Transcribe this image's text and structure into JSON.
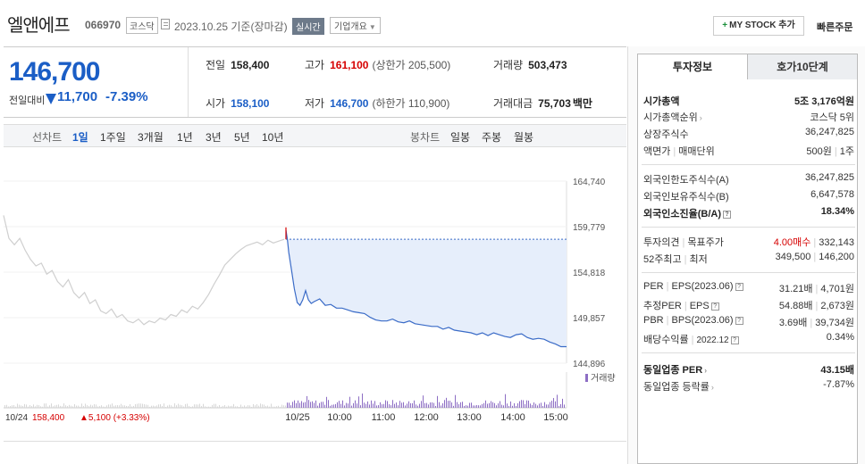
{
  "header": {
    "stock_name": "엘앤에프",
    "stock_code": "066970",
    "market": "코스닥",
    "base_date": "2023.10.25 기준(장마감)",
    "realtime": "실시간",
    "overview": "기업개요",
    "mystock_button": "MY STOCK 추가",
    "quick_order": "빠른주문"
  },
  "price": {
    "current": "146,700",
    "change_label": "전일대비",
    "change_value": "11,700",
    "change_rate": "-7.39%",
    "prev_close_label": "전일",
    "prev_close": "158,400",
    "high_label": "고가",
    "high": "161,100",
    "upper_limit": "(상한가 205,500)",
    "volume_label": "거래량",
    "volume": "503,473",
    "open_label": "시가",
    "open": "158,100",
    "low_label": "저가",
    "low": "146,700",
    "lower_limit": "(하한가 110,900)",
    "amount_label": "거래대금",
    "amount": "75,703",
    "amount_unit": "백만"
  },
  "periods": {
    "line_label": "선차트",
    "line": [
      "1일",
      "1주일",
      "3개월",
      "1년",
      "3년",
      "5년",
      "10년"
    ],
    "candle_label": "봉차트",
    "candle": [
      "일봉",
      "주봉",
      "월봉"
    ]
  },
  "colors": {
    "up": "#d60000",
    "down": "#1b5ec6",
    "area": "#e6eefb",
    "line": "#3a6bc7",
    "prev_line": "#cfcfcf"
  },
  "chart_data": {
    "type": "line",
    "y_ticks": [
      "164,740",
      "159,779",
      "154,818",
      "149,857",
      "144,896"
    ],
    "ylim": [
      144896,
      164740
    ],
    "x_ticks": [
      "10/25",
      "10:00",
      "11:00",
      "12:00",
      "13:00",
      "14:00",
      "15:00"
    ],
    "prev_day_label": "10/24",
    "prev_day_close": "158,400",
    "prev_day_change": "▲5,100 (+3.33%)",
    "volume_label": "거래량",
    "prev_series": [
      [
        0,
        161000
      ],
      [
        2,
        158500
      ],
      [
        4,
        157800
      ],
      [
        6,
        158500
      ],
      [
        8,
        157200
      ],
      [
        10,
        156200
      ],
      [
        12,
        155500
      ],
      [
        14,
        155800
      ],
      [
        16,
        154600
      ],
      [
        18,
        155000
      ],
      [
        20,
        153800
      ],
      [
        22,
        153200
      ],
      [
        24,
        154000
      ],
      [
        26,
        152600
      ],
      [
        28,
        152000
      ],
      [
        30,
        152600
      ],
      [
        32,
        151400
      ],
      [
        34,
        151800
      ],
      [
        36,
        150600
      ],
      [
        38,
        150300
      ],
      [
        40,
        150800
      ],
      [
        42,
        149900
      ],
      [
        44,
        150200
      ],
      [
        46,
        149500
      ],
      [
        48,
        149300
      ],
      [
        50,
        149700
      ],
      [
        52,
        149100
      ],
      [
        54,
        149500
      ],
      [
        56,
        149300
      ],
      [
        58,
        149800
      ],
      [
        60,
        149600
      ],
      [
        62,
        150200
      ],
      [
        64,
        150000
      ],
      [
        66,
        150700
      ],
      [
        68,
        150400
      ],
      [
        70,
        151100
      ],
      [
        72,
        150800
      ],
      [
        74,
        151500
      ],
      [
        76,
        152400
      ],
      [
        78,
        153500
      ],
      [
        80,
        154500
      ],
      [
        82,
        155600
      ],
      [
        84,
        156200
      ],
      [
        86,
        156800
      ],
      [
        88,
        157300
      ],
      [
        90,
        157700
      ],
      [
        92,
        157900
      ],
      [
        94,
        158100
      ],
      [
        96,
        157800
      ],
      [
        98,
        158300
      ],
      [
        100,
        158000
      ],
      [
        102,
        158200
      ],
      [
        104,
        158400
      ]
    ],
    "today_series": [
      [
        0,
        159400
      ],
      [
        0.5,
        158400
      ],
      [
        1,
        157000
      ],
      [
        2,
        155000
      ],
      [
        3,
        153000
      ],
      [
        4,
        151500
      ],
      [
        5,
        151200
      ],
      [
        6,
        151800
      ],
      [
        7,
        152800
      ],
      [
        8,
        151800
      ],
      [
        9,
        151400
      ],
      [
        10,
        151600
      ],
      [
        12,
        151900
      ],
      [
        14,
        151200
      ],
      [
        16,
        151300
      ],
      [
        18,
        150900
      ],
      [
        20,
        150900
      ],
      [
        22,
        150700
      ],
      [
        24,
        150500
      ],
      [
        26,
        150400
      ],
      [
        28,
        150300
      ],
      [
        30,
        149900
      ],
      [
        32,
        149600
      ],
      [
        34,
        149500
      ],
      [
        36,
        149500
      ],
      [
        38,
        149700
      ],
      [
        40,
        149400
      ],
      [
        42,
        149300
      ],
      [
        44,
        149500
      ],
      [
        46,
        149200
      ],
      [
        48,
        149100
      ],
      [
        50,
        149000
      ],
      [
        52,
        148900
      ],
      [
        54,
        148900
      ],
      [
        56,
        148600
      ],
      [
        58,
        148800
      ],
      [
        60,
        148500
      ],
      [
        62,
        148400
      ],
      [
        64,
        148300
      ],
      [
        66,
        148200
      ],
      [
        68,
        148000
      ],
      [
        70,
        148200
      ],
      [
        72,
        147900
      ],
      [
        74,
        148200
      ],
      [
        76,
        148000
      ],
      [
        78,
        147800
      ],
      [
        80,
        147700
      ],
      [
        82,
        148000
      ],
      [
        84,
        148100
      ],
      [
        86,
        147700
      ],
      [
        88,
        147500
      ],
      [
        90,
        147600
      ],
      [
        92,
        147500
      ],
      [
        94,
        147200
      ],
      [
        96,
        147000
      ],
      [
        98,
        146700
      ],
      [
        100,
        146700
      ]
    ]
  },
  "tabs": {
    "invest": "투자정보",
    "orderbook": "호가10단계"
  },
  "invest": {
    "mcap_label": "시가총액",
    "mcap": "5조 3,176억원",
    "mcap_rank_label": "시가총액순위",
    "mcap_rank": "코스닥 5위",
    "shares_label": "상장주식수",
    "shares": "36,247,825",
    "par_label": "액면가",
    "unit_label": "매매단위",
    "par": "500원",
    "unit": "1주",
    "foreign_limit_label": "외국인한도주식수(A)",
    "foreign_limit": "36,247,825",
    "foreign_hold_label": "외국인보유주식수(B)",
    "foreign_hold": "6,647,578",
    "foreign_rate_label": "외국인소진율(B/A)",
    "foreign_rate": "18.34%",
    "opinion_label": "투자의견",
    "target_label": "목표주가",
    "opinion": "4.00매수",
    "target": "332,143",
    "w52_high_label": "52주최고",
    "w52_low_label": "최저",
    "w52_high": "349,500",
    "w52_low": "146,200",
    "per_label": "PER",
    "eps_label": "EPS(2023.06)",
    "per": "31.21배",
    "eps": "4,701원",
    "est_per_label": "추정PER",
    "est_eps_label": "EPS",
    "est_per": "54.88배",
    "est_eps": "2,673원",
    "pbr_label": "PBR",
    "bps_label": "BPS(2023.06)",
    "pbr": "3.69배",
    "bps": "39,734원",
    "div_label": "배당수익률",
    "div_date": "2022.12",
    "div": "0.34%",
    "sector_per_label": "동일업종 PER",
    "sector_per": "43.15배",
    "sector_chg_label": "동일업종 등락률",
    "sector_chg": "-7.87%"
  }
}
